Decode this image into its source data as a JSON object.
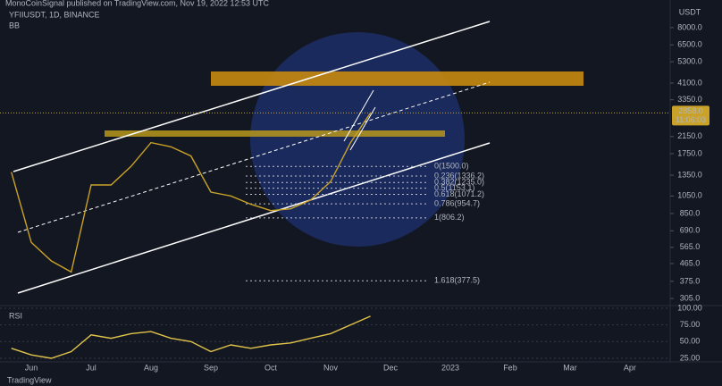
{
  "header": {
    "published": "MonoCoinSignal published on TradingView.com, Nov 19, 2022 12:53 UTC",
    "symbol": "YFIIUSDT, 1D, BINANCE",
    "indicator": "BB",
    "footer": "TradingView"
  },
  "chart_data": [
    {
      "type": "line",
      "name": "YFIIUSDT",
      "color": "#c9a227",
      "currency": "USDT",
      "log_scale": true,
      "categories": [
        null,
        "Jun",
        null,
        null,
        "Jul",
        null,
        null,
        "Aug",
        null,
        null,
        "Sep",
        null,
        null,
        "Oct",
        null,
        null,
        "Nov",
        null,
        null,
        "Dec",
        null,
        null,
        "2023",
        null,
        null,
        "Feb",
        null,
        null,
        "Mar",
        null,
        null,
        "Apr",
        null
      ],
      "values": [
        1400,
        600,
        480,
        420,
        1200,
        1200,
        1500,
        2000,
        1900,
        1700,
        1100,
        1050,
        950,
        880,
        900,
        1000,
        1250,
        2000,
        2858,
        null,
        null,
        null,
        null,
        null,
        null,
        null,
        null,
        null,
        null,
        null,
        null,
        null,
        null
      ],
      "ylim": [
        280,
        10240
      ],
      "yticks": [
        {
          "value": 8000,
          "label": "8000.0"
        },
        {
          "value": 6500,
          "label": "6500.0"
        },
        {
          "value": 5300,
          "label": "5300.0"
        },
        {
          "value": 4100,
          "label": "4100.0"
        },
        {
          "value": 3350,
          "label": "3350.0"
        },
        {
          "value": 2150,
          "label": "2150.0"
        },
        {
          "value": 1750,
          "label": "1750.0"
        },
        {
          "value": 1350,
          "label": "1350.0"
        },
        {
          "value": 1050,
          "label": "1050.0"
        },
        {
          "value": 850,
          "label": "850.0"
        },
        {
          "value": 690,
          "label": "690.0"
        },
        {
          "value": 565,
          "label": "565.0"
        },
        {
          "value": 465,
          "label": "465.0"
        },
        {
          "value": 375,
          "label": "375.0"
        },
        {
          "value": 305,
          "label": "305.0"
        }
      ],
      "last_price": {
        "value": 2858,
        "label": "2858.0"
      },
      "countdown": "11:06:03",
      "fib_levels": [
        {
          "value": 1500,
          "label": "0(1500.0)"
        },
        {
          "value": 1336.2,
          "label": "0.236(1336.2)"
        },
        {
          "value": 1235,
          "label": "0.382(1235.0)"
        },
        {
          "value": 1153.1,
          "label": "0.5(1153.1)"
        },
        {
          "value": 1071.2,
          "label": "0.618(1071.2)"
        },
        {
          "value": 954.7,
          "label": "0.786(954.7)"
        },
        {
          "value": 806.2,
          "label": "1(806.2)"
        },
        {
          "value": 377.5,
          "label": "1.618(377.5)"
        }
      ]
    },
    {
      "type": "line",
      "title": "RSI",
      "color": "#e0c34a",
      "values": [
        40,
        30,
        25,
        35,
        60,
        55,
        62,
        65,
        55,
        50,
        35,
        45,
        40,
        45,
        48,
        55,
        62,
        75,
        88,
        null,
        null,
        null,
        null,
        null,
        null,
        null,
        null,
        null,
        null,
        null,
        null,
        null,
        null
      ],
      "ylim": [
        19.6,
        104
      ],
      "yticks": [
        {
          "value": 100,
          "label": "100.00"
        },
        {
          "value": 75,
          "label": "75.00"
        },
        {
          "value": 50,
          "label": "50.00"
        },
        {
          "value": 25,
          "label": "25.00"
        }
      ]
    }
  ]
}
